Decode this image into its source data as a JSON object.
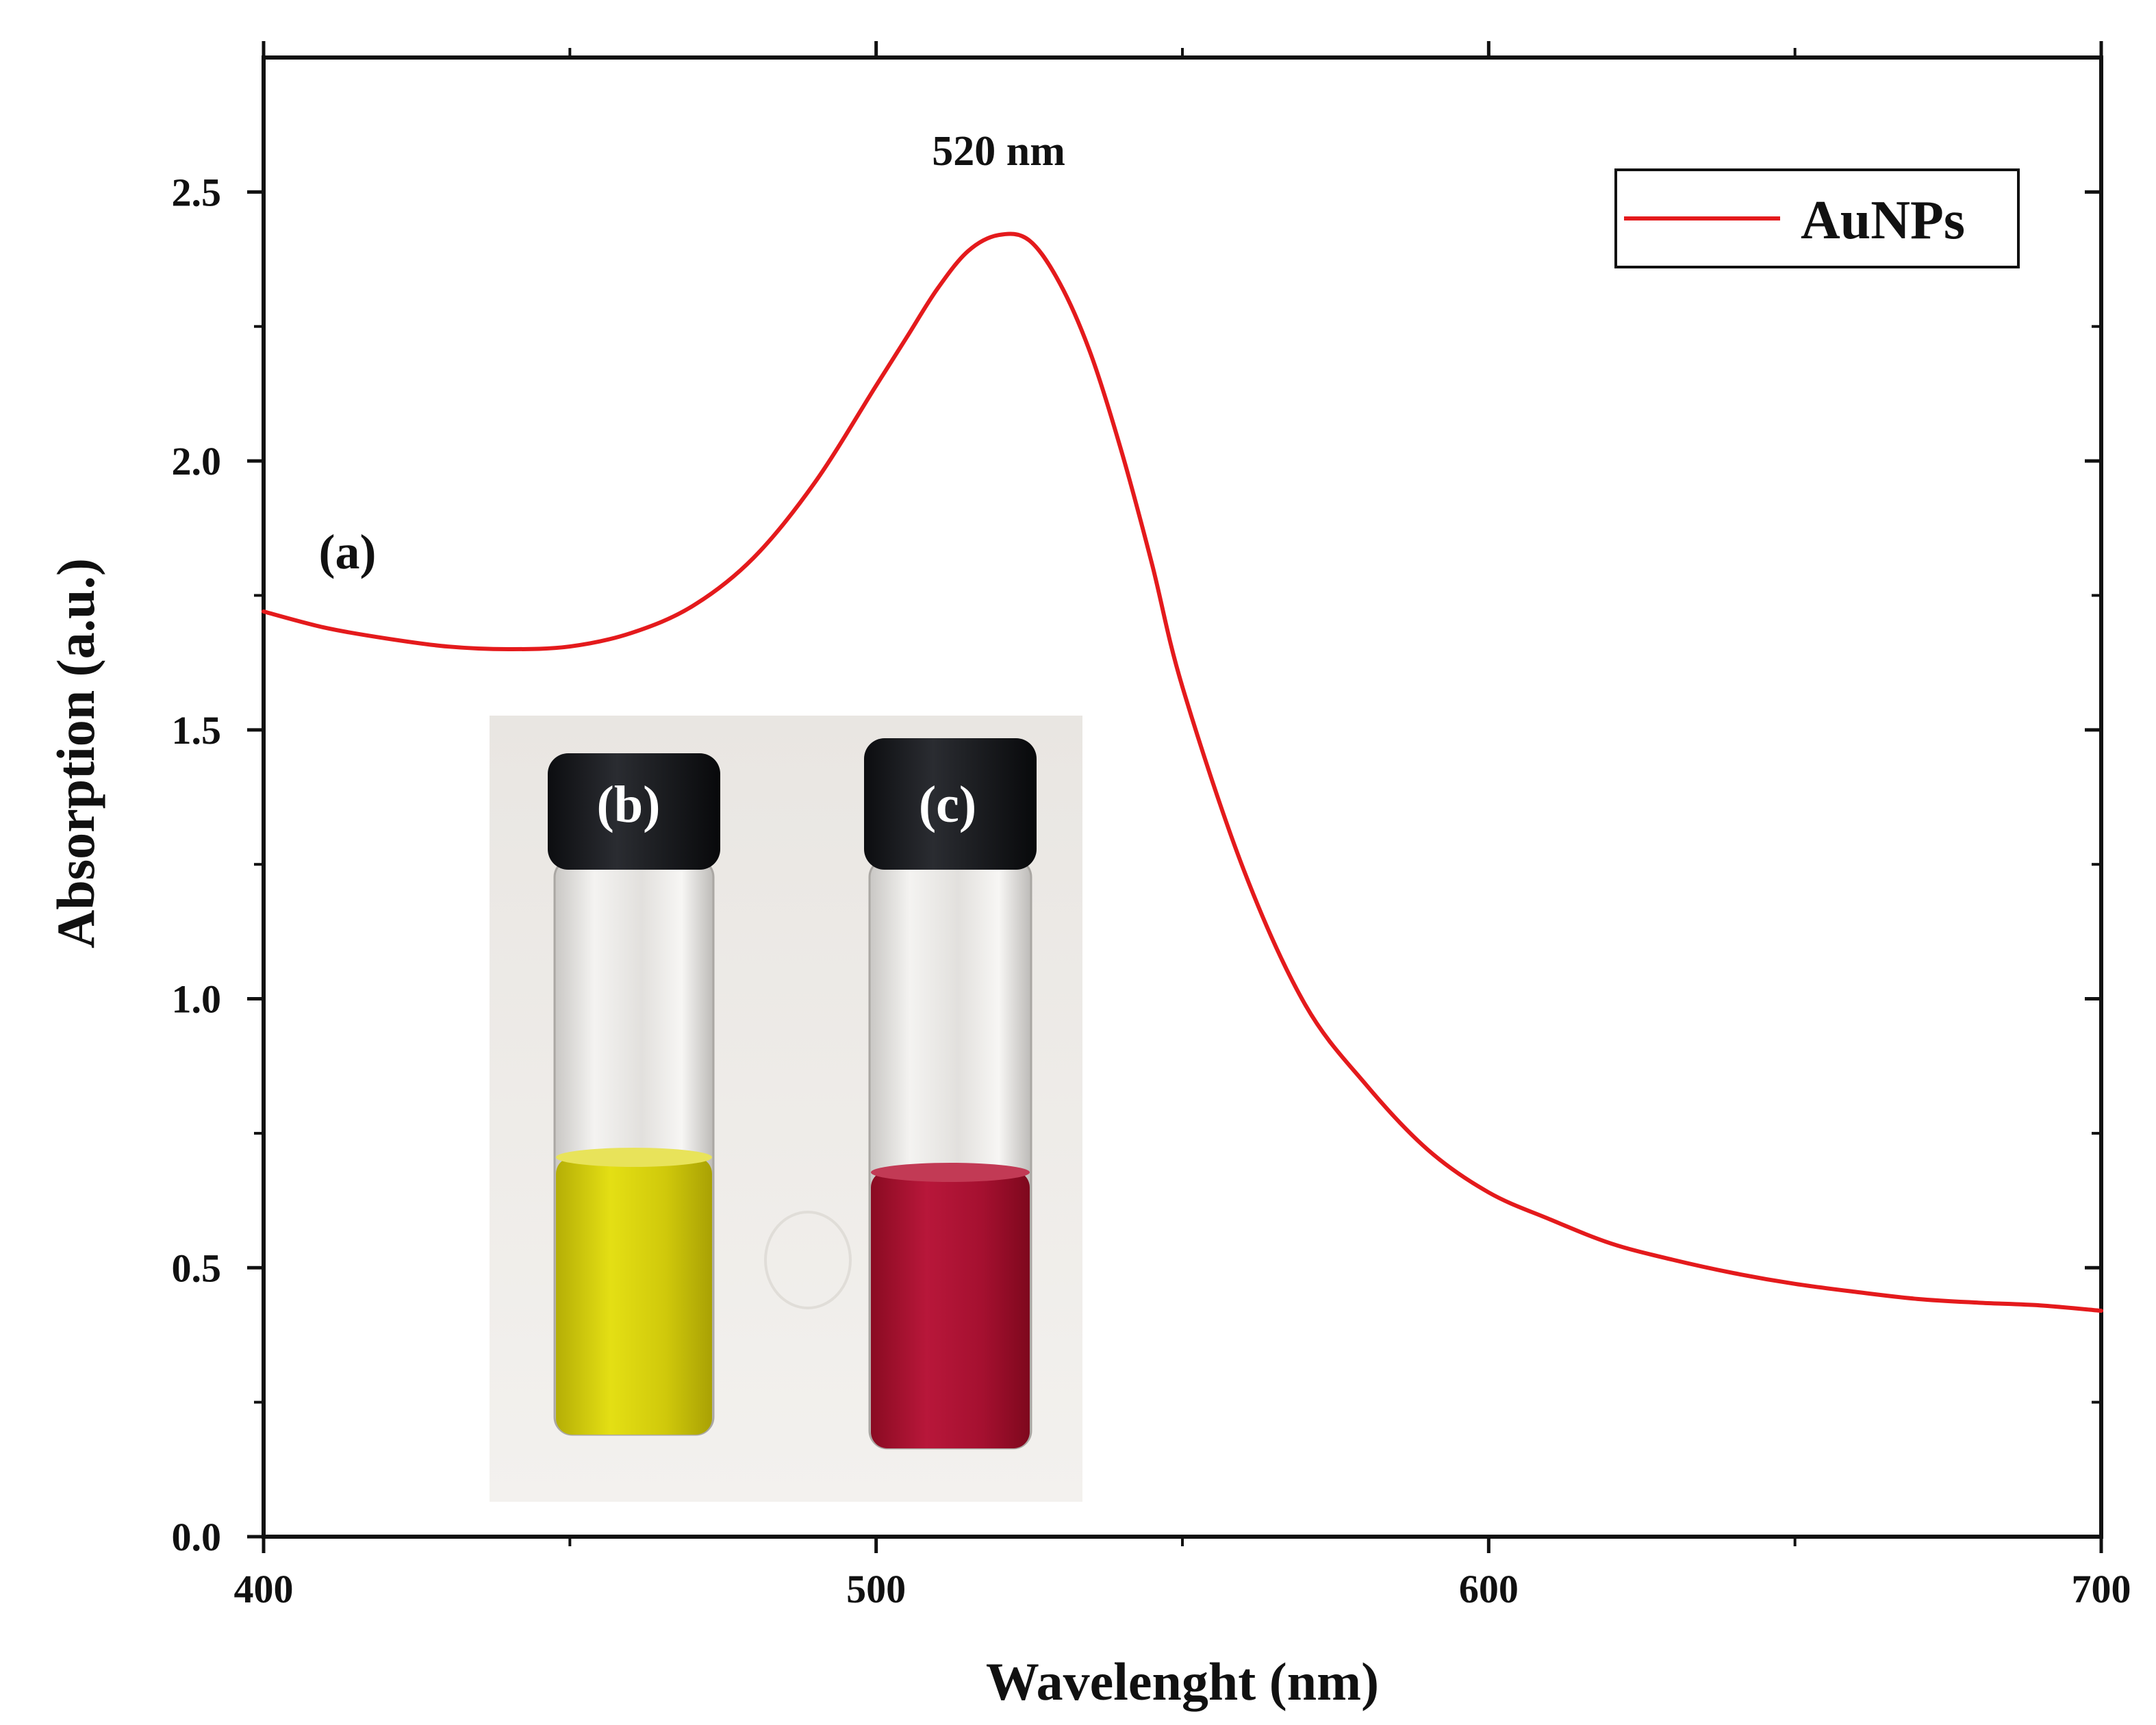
{
  "chart_data": {
    "type": "line",
    "title": "",
    "xlabel": "Wavelenght (nm)",
    "ylabel": "Absorption (a.u.)",
    "xlim": [
      400,
      700
    ],
    "ylim": [
      0,
      2.75
    ],
    "x_ticks": [
      "400",
      "500",
      "600",
      "700"
    ],
    "y_ticks": [
      "0.0",
      "0.5",
      "1.0",
      "1.5",
      "2.0",
      "2.5"
    ],
    "x_tick_values": [
      400,
      500,
      600,
      700
    ],
    "y_tick_values": [
      0,
      0.5,
      1.0,
      1.5,
      2.0,
      2.5
    ],
    "x_minor_ticks": [
      450,
      550,
      650
    ],
    "y_minor_ticks": [
      0.25,
      0.75,
      1.25,
      1.75,
      2.25
    ],
    "grid": false,
    "legend_position": "top-right",
    "series": [
      {
        "name": "AuNPs",
        "color": "#e41a1c",
        "x": [
          400,
          410,
          420,
          430,
          440,
          450,
          460,
          470,
          480,
          490,
          500,
          505,
          510,
          515,
          520,
          525,
          530,
          535,
          540,
          545,
          550,
          560,
          570,
          580,
          590,
          600,
          610,
          620,
          630,
          640,
          650,
          660,
          670,
          680,
          690,
          700
        ],
        "y": [
          1.72,
          1.69,
          1.67,
          1.655,
          1.65,
          1.655,
          1.68,
          1.73,
          1.82,
          1.96,
          2.14,
          2.23,
          2.32,
          2.39,
          2.42,
          2.41,
          2.33,
          2.2,
          2.02,
          1.81,
          1.58,
          1.24,
          0.99,
          0.84,
          0.72,
          0.64,
          0.59,
          0.545,
          0.515,
          0.49,
          0.47,
          0.455,
          0.442,
          0.435,
          0.43,
          0.42
        ]
      }
    ],
    "annotations": [
      {
        "text": "520 nm",
        "x": 520,
        "y": 2.55
      },
      {
        "text": "(a)",
        "x": 409,
        "y": 1.8
      }
    ]
  },
  "inset": {
    "vial_b_label": "(b)",
    "vial_c_label": "(c)",
    "vial_b_liquid_color": "#d4cf0a",
    "vial_c_liquid_color": "#a8102c"
  }
}
